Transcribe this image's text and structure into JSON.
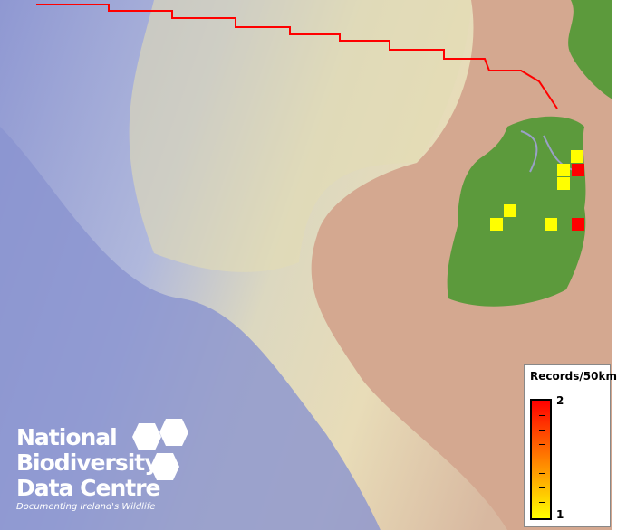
{
  "legend": {
    "title": "Records/50km",
    "max_label": "2",
    "min_label": "1",
    "colors": {
      "min": "#ffff00",
      "max": "#ff0000"
    }
  },
  "logo": {
    "line1": "National",
    "line2": "Biodiversity",
    "line3": "Data Centre",
    "tagline": "Documenting Ireland's Wildlife"
  },
  "colors": {
    "boundary": "#ff0000",
    "land": "#5a9a3a",
    "sea_deep": "#8c96d6",
    "sea_shallow": "#e6dcb0",
    "land_other": "#c8a088"
  },
  "records": [
    1,
    1,
    2,
    1,
    1,
    1,
    1,
    2
  ]
}
